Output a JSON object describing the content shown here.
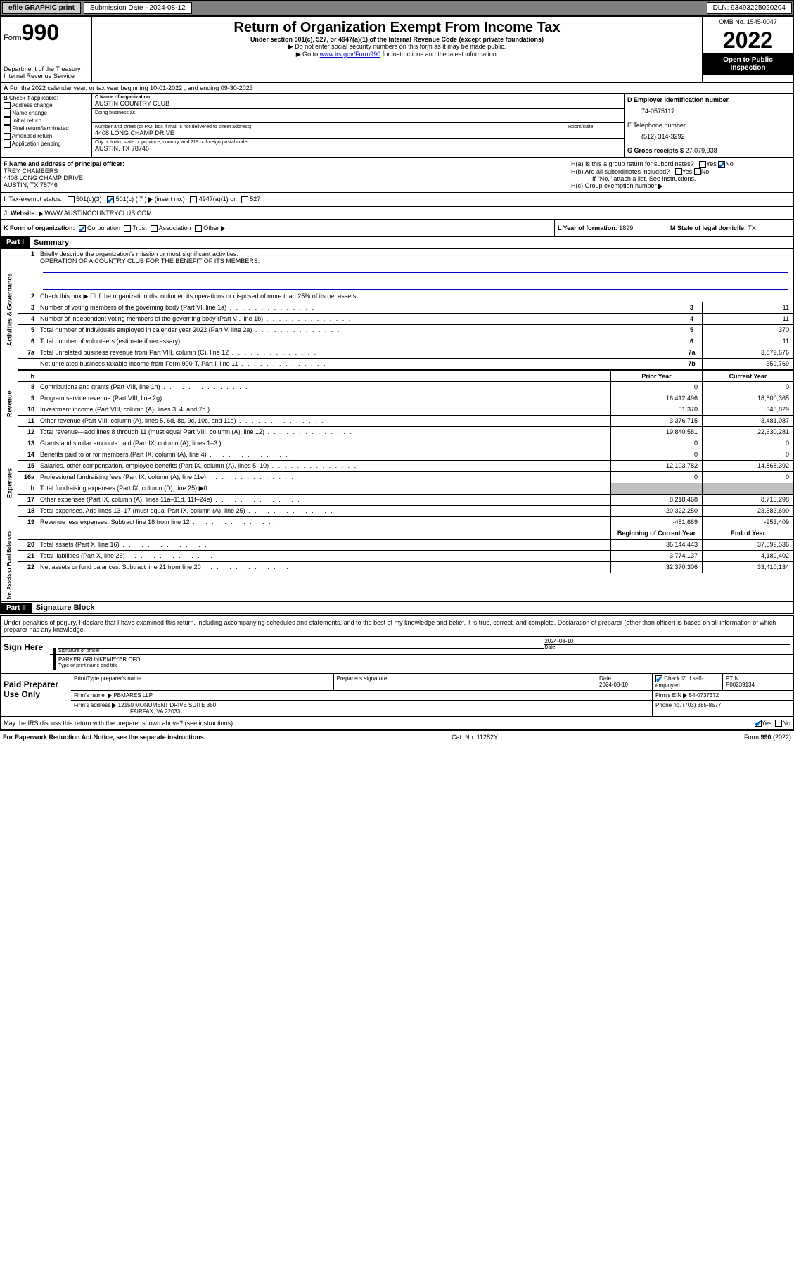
{
  "topbar": {
    "efile": "efile GRAPHIC print",
    "sub_label": "Submission Date - 2024-08-12",
    "dln_label": "DLN: 93493225020204"
  },
  "header": {
    "form_label": "Form",
    "form_num": "990",
    "dept": "Department of the Treasury",
    "irs": "Internal Revenue Service",
    "title": "Return of Organization Exempt From Income Tax",
    "subtitle": "Under section 501(c), 527, or 4947(a)(1) of the Internal Revenue Code (except private foundations)",
    "note1": "Do not enter social security numbers on this form as it may be made public.",
    "note2_pre": "Go to ",
    "note2_link": "www.irs.gov/Form990",
    "note2_post": " for instructions and the latest information.",
    "omb": "OMB No. 1545-0047",
    "year": "2022",
    "open": "Open to Public Inspection"
  },
  "row_a": {
    "text": "For the 2022 calendar year, or tax year beginning 10-01-2022   , and ending 09-30-2023"
  },
  "col_b": {
    "label": "Check if applicable:",
    "opts": [
      "Address change",
      "Name change",
      "Initial return",
      "Final return/terminated",
      "Amended return",
      "Application pending"
    ]
  },
  "col_c": {
    "name_lbl": "C Name of organization",
    "name": "AUSTIN COUNTRY CLUB",
    "dba_lbl": "Doing business as",
    "dba": "",
    "addr_lbl": "Number and street (or P.O. box if mail is not delivered to street address)",
    "room_lbl": "Room/suite",
    "addr": "4408 LONG CHAMP DRIVE",
    "city_lbl": "City or town, state or province, country, and ZIP or foreign postal code",
    "city": "AUSTIN, TX  78746"
  },
  "col_de": {
    "d_lbl": "D Employer identification number",
    "ein": "74-0575117",
    "e_lbl": "E Telephone number",
    "phone": "(512) 314-3292",
    "g_lbl": "G Gross receipts $",
    "gross": "27,079,938"
  },
  "row_f": {
    "lbl": "F Name and address of principal officer:",
    "name": "TREY CHAMBERS",
    "addr1": "4408 LONG CHAMP DRIVE",
    "addr2": "AUSTIN, TX  78746"
  },
  "row_h": {
    "ha": "H(a)  Is this a group return for subordinates?",
    "hb": "H(b)  Are all subordinates included?",
    "hb_note": "If \"No,\" attach a list. See instructions.",
    "hc": "H(c)  Group exemption number"
  },
  "row_i": {
    "lbl": "Tax-exempt status:",
    "opts": [
      "501(c)(3)",
      "501(c) ( 7 )",
      "(insert no.)",
      "4947(a)(1) or",
      "527"
    ]
  },
  "row_j": {
    "lbl": "Website:",
    "val": "WWW.AUSTINCOUNTRYCLUB.COM"
  },
  "row_k": {
    "lbl": "K Form of organization:",
    "opts": [
      "Corporation",
      "Trust",
      "Association",
      "Other"
    ]
  },
  "row_lm": {
    "l_lbl": "L Year of formation:",
    "l_val": "1899",
    "m_lbl": "M State of legal domicile:",
    "m_val": "TX"
  },
  "part1": {
    "hdr": "Part I",
    "title": "Summary",
    "q1": "Briefly describe the organization's mission or most significant activities:",
    "mission": "OPERATION OF A COUNTRY CLUB FOR THE BENEFIT OF ITS MEMBERS.",
    "q2": "Check this box ▶ ☐  if the organization discontinued its operations or disposed of more than 25% of its net assets.",
    "vtabs": {
      "gov": "Activities & Governance",
      "rev": "Revenue",
      "exp": "Expenses",
      "net": "Net Assets or Fund Balances"
    },
    "col_hdr_prior": "Prior Year",
    "col_hdr_curr": "Current Year",
    "col_hdr_begin": "Beginning of Current Year",
    "col_hdr_end": "End of Year",
    "rows_gov": [
      {
        "n": "3",
        "d": "Number of voting members of the governing body (Part VI, line 1a)",
        "box": "3",
        "v": "11"
      },
      {
        "n": "4",
        "d": "Number of independent voting members of the governing body (Part VI, line 1b)",
        "box": "4",
        "v": "11"
      },
      {
        "n": "5",
        "d": "Total number of individuals employed in calendar year 2022 (Part V, line 2a)",
        "box": "5",
        "v": "370"
      },
      {
        "n": "6",
        "d": "Total number of volunteers (estimate if necessary)",
        "box": "6",
        "v": "11"
      },
      {
        "n": "7a",
        "d": "Total unrelated business revenue from Part VIII, column (C), line 12",
        "box": "7a",
        "v": "3,879,676"
      },
      {
        "n": "",
        "d": "Net unrelated business taxable income from Form 990-T, Part I, line 11",
        "box": "7b",
        "v": "359,769"
      }
    ],
    "rows_rev": [
      {
        "n": "8",
        "d": "Contributions and grants (Part VIII, line 1h)",
        "p": "0",
        "c": "0"
      },
      {
        "n": "9",
        "d": "Program service revenue (Part VIII, line 2g)",
        "p": "16,412,496",
        "c": "18,800,365"
      },
      {
        "n": "10",
        "d": "Investment income (Part VIII, column (A), lines 3, 4, and 7d )",
        "p": "51,370",
        "c": "348,829"
      },
      {
        "n": "11",
        "d": "Other revenue (Part VIII, column (A), lines 5, 6d, 8c, 9c, 10c, and 11e)",
        "p": "3,376,715",
        "c": "3,481,087"
      },
      {
        "n": "12",
        "d": "Total revenue—add lines 8 through 11 (must equal Part VIII, column (A), line 12)",
        "p": "19,840,581",
        "c": "22,630,281"
      }
    ],
    "rows_exp": [
      {
        "n": "13",
        "d": "Grants and similar amounts paid (Part IX, column (A), lines 1–3 )",
        "p": "0",
        "c": "0"
      },
      {
        "n": "14",
        "d": "Benefits paid to or for members (Part IX, column (A), line 4)",
        "p": "0",
        "c": "0"
      },
      {
        "n": "15",
        "d": "Salaries, other compensation, employee benefits (Part IX, column (A), lines 5–10)",
        "p": "12,103,782",
        "c": "14,868,392"
      },
      {
        "n": "16a",
        "d": "Professional fundraising fees (Part IX, column (A), line 11e)",
        "p": "0",
        "c": "0"
      },
      {
        "n": "b",
        "d": "Total fundraising expenses (Part IX, column (D), line 25) ▶0",
        "p": "",
        "c": "",
        "shade": true
      },
      {
        "n": "17",
        "d": "Other expenses (Part IX, column (A), lines 11a–11d, 11f–24e)",
        "p": "8,218,468",
        "c": "8,715,298"
      },
      {
        "n": "18",
        "d": "Total expenses. Add lines 13–17 (must equal Part IX, column (A), line 25)",
        "p": "20,322,250",
        "c": "23,583,690"
      },
      {
        "n": "19",
        "d": "Revenue less expenses. Subtract line 18 from line 12",
        "p": "-481,669",
        "c": "-953,409"
      }
    ],
    "rows_net": [
      {
        "n": "20",
        "d": "Total assets (Part X, line 16)",
        "p": "36,144,443",
        "c": "37,599,536"
      },
      {
        "n": "21",
        "d": "Total liabilities (Part X, line 26)",
        "p": "3,774,137",
        "c": "4,189,402"
      },
      {
        "n": "22",
        "d": "Net assets or fund balances. Subtract line 21 from line 20",
        "p": "32,370,306",
        "c": "33,410,134"
      }
    ]
  },
  "part2": {
    "hdr": "Part II",
    "title": "Signature Block",
    "intro": "Under penalties of perjury, I declare that I have examined this return, including accompanying schedules and statements, and to the best of my knowledge and belief, it is true, correct, and complete. Declaration of preparer (other than officer) is based on all information of which preparer has any knowledge.",
    "sign_here": "Sign Here",
    "sig_officer": "Signature of officer",
    "sig_date": "2024-08-10",
    "date_lbl": "Date",
    "officer_name": "PARKER GRUNKEMEYER CFO",
    "officer_lbl": "Type or print name and title",
    "paid_hdr": "Paid Preparer Use Only",
    "prep_name_lbl": "Print/Type preparer's name",
    "prep_sig_lbl": "Preparer's signature",
    "prep_date_lbl": "Date",
    "prep_date": "2024-08-10",
    "self_emp": "Check ☑ if self-employed",
    "ptin_lbl": "PTIN",
    "ptin": "P00239134",
    "firm_name_lbl": "Firm's name",
    "firm_name": "PBMARES LLP",
    "firm_ein_lbl": "Firm's EIN",
    "firm_ein": "54-0737372",
    "firm_addr_lbl": "Firm's address",
    "firm_addr1": "12150 MONUMENT DRIVE SUITE 350",
    "firm_addr2": "FAIRFAX, VA  22033",
    "firm_phone_lbl": "Phone no.",
    "firm_phone": "(703) 385-8577",
    "may_irs": "May the IRS discuss this return with the preparer shown above? (see instructions)"
  },
  "footer": {
    "pra": "For Paperwork Reduction Act Notice, see the separate instructions.",
    "cat": "Cat. No. 11282Y",
    "form": "Form 990 (2022)"
  }
}
